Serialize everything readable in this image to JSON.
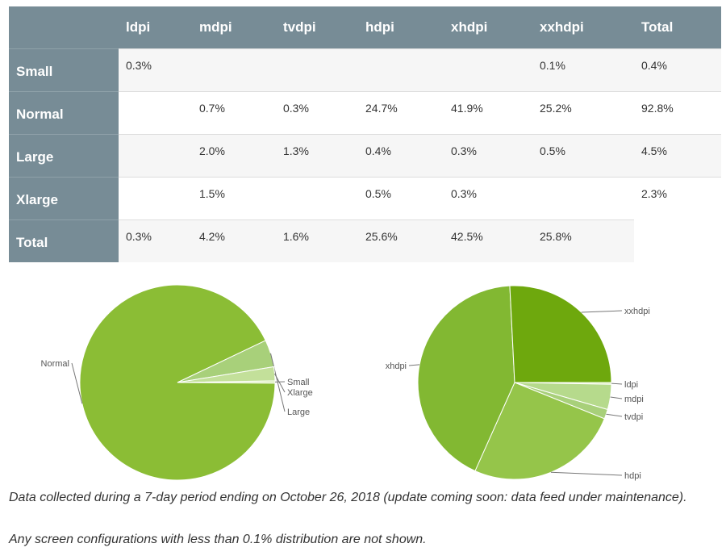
{
  "table": {
    "columns": [
      "",
      "ldpi",
      "mdpi",
      "tvdpi",
      "hdpi",
      "xhdpi",
      "xxhdpi",
      "Total"
    ],
    "rows": [
      {
        "label": "Small",
        "cells": [
          "0.3%",
          "",
          "",
          "",
          "",
          "0.1%",
          "0.4%"
        ]
      },
      {
        "label": "Normal",
        "cells": [
          "",
          "0.7%",
          "0.3%",
          "24.7%",
          "41.9%",
          "25.2%",
          "92.8%"
        ]
      },
      {
        "label": "Large",
        "cells": [
          "",
          "2.0%",
          "1.3%",
          "0.4%",
          "0.3%",
          "0.5%",
          "4.5%"
        ]
      },
      {
        "label": "Xlarge",
        "cells": [
          "",
          "1.5%",
          "",
          "0.5%",
          "0.3%",
          "",
          "2.3%"
        ]
      },
      {
        "label": "Total",
        "cells": [
          "0.3%",
          "4.2%",
          "1.6%",
          "25.6%",
          "42.5%",
          "25.8%",
          ""
        ]
      }
    ]
  },
  "chart_data": [
    {
      "type": "pie",
      "title": "",
      "labels": [
        "Small",
        "Normal",
        "Large",
        "Xlarge"
      ],
      "values": [
        0.4,
        92.8,
        4.5,
        2.3
      ],
      "colors": [
        "#d8edb5",
        "#8bbd35",
        "#a8d07a",
        "#c3e09a"
      ]
    },
    {
      "type": "pie",
      "title": "",
      "labels": [
        "ldpi",
        "mdpi",
        "tvdpi",
        "hdpi",
        "xhdpi",
        "xxhdpi"
      ],
      "values": [
        0.3,
        4.2,
        1.6,
        25.6,
        42.5,
        25.8
      ],
      "colors": [
        "#d8edb5",
        "#b6da8c",
        "#a8d07a",
        "#95c54a",
        "#82b832",
        "#6ea80d"
      ]
    }
  ],
  "footnotes": {
    "line1": "Data collected during a 7-day period ending on October 26, 2018 (update coming soon: data feed under maintenance).",
    "line2": "Any screen configurations with less than 0.1% distribution are not shown."
  }
}
